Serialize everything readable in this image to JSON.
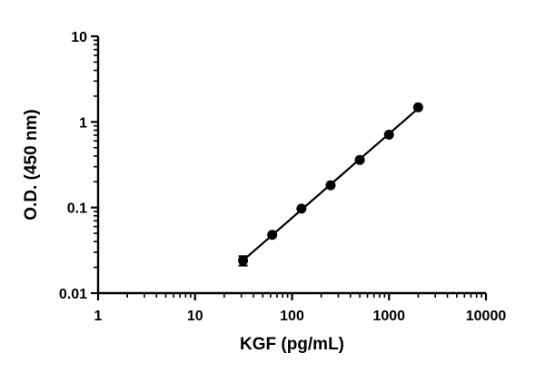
{
  "chart_data": {
    "type": "scatter",
    "title": "",
    "xlabel": "KGF (pg/mL)",
    "ylabel": "O.D. (450 nm)",
    "x_scale": "log",
    "y_scale": "log",
    "xlim": [
      1,
      10000
    ],
    "ylim": [
      0.01,
      10
    ],
    "x_ticks": [
      1,
      10,
      100,
      1000,
      10000
    ],
    "x_tick_labels": [
      "1",
      "10",
      "100",
      "1000",
      "10000"
    ],
    "y_ticks": [
      0.01,
      0.1,
      1,
      10
    ],
    "y_tick_labels": [
      "0.01",
      "0.1",
      "1",
      "10"
    ],
    "grid": false,
    "series": [
      {
        "x": [
          31.25,
          62.5,
          125,
          250,
          500,
          1000,
          2000
        ],
        "y": [
          0.024,
          0.048,
          0.097,
          0.182,
          0.36,
          0.71,
          1.48
        ],
        "y_error": [
          0.003,
          0,
          0,
          0,
          0,
          0,
          0
        ],
        "fit_line": true
      }
    ]
  }
}
